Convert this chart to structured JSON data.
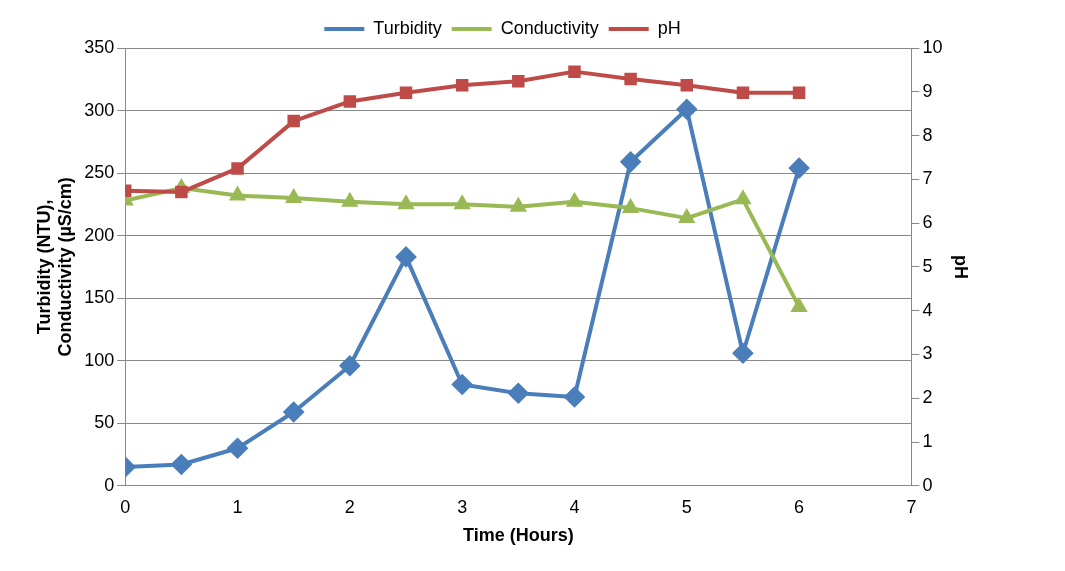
{
  "chart_data": {
    "type": "line",
    "xlabel": "Time (Hours)",
    "ylabel": "Turbidity (NTU), Conductivity (µS/cm)",
    "y2label": "pH",
    "x": [
      0,
      0.5,
      1,
      1.5,
      2,
      2.5,
      3,
      3.5,
      4,
      4.5,
      5,
      5.5,
      6
    ],
    "xlim": [
      0,
      7
    ],
    "xticks": [
      0,
      1,
      2,
      3,
      4,
      5,
      6,
      7
    ],
    "ylim": [
      0,
      350
    ],
    "yticks": [
      0,
      50,
      100,
      150,
      200,
      250,
      300,
      350
    ],
    "y2lim": [
      0,
      10
    ],
    "y2ticks": [
      0,
      1,
      2,
      3,
      4,
      5,
      6,
      7,
      8,
      9,
      10
    ],
    "grid": "y",
    "legend": "top",
    "series": [
      {
        "name": "Turbidity",
        "color": "#4a7ebb",
        "marker": "diamond",
        "values": [
          15,
          17,
          30,
          59,
          96,
          183,
          81,
          74,
          71,
          259,
          301,
          106,
          254
        ]
      },
      {
        "name": "Conductivity",
        "color": "#98b954",
        "marker": "triangle",
        "values": [
          228,
          238,
          232,
          230,
          227,
          225,
          225,
          223,
          227,
          222,
          214,
          229,
          143
        ]
      },
      {
        "name": "pH",
        "color": "#be4b48",
        "marker": "square",
        "axis": "y2",
        "values": [
          6.74,
          6.71,
          7.25,
          8.33,
          8.78,
          8.98,
          9.15,
          9.24,
          9.46,
          9.29,
          9.15,
          8.98,
          8.98
        ]
      }
    ]
  }
}
